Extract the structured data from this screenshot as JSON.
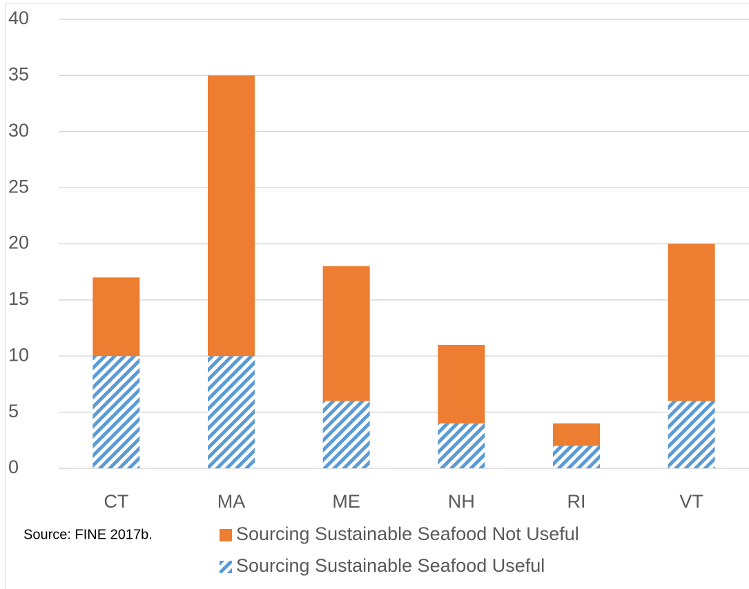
{
  "chart_data": {
    "type": "stacked_bar",
    "categories": [
      "CT",
      "MA",
      "ME",
      "NH",
      "RI",
      "VT"
    ],
    "series": [
      {
        "name": "Sourcing Sustainable Seafood Useful",
        "color": "#5b9bd5",
        "pattern": "diagonal",
        "values": [
          10,
          10,
          6,
          4,
          2,
          6
        ]
      },
      {
        "name": "Sourcing Sustainable Seafood Not Useful",
        "color": "#ed7d31",
        "pattern": "solid",
        "values": [
          7,
          25,
          12,
          7,
          2,
          14
        ]
      }
    ],
    "ylim": [
      0,
      40
    ],
    "yticks": [
      0,
      5,
      10,
      15,
      20,
      25,
      30,
      35,
      40
    ],
    "grid": true,
    "annotation": "Source: FINE 2017b."
  }
}
